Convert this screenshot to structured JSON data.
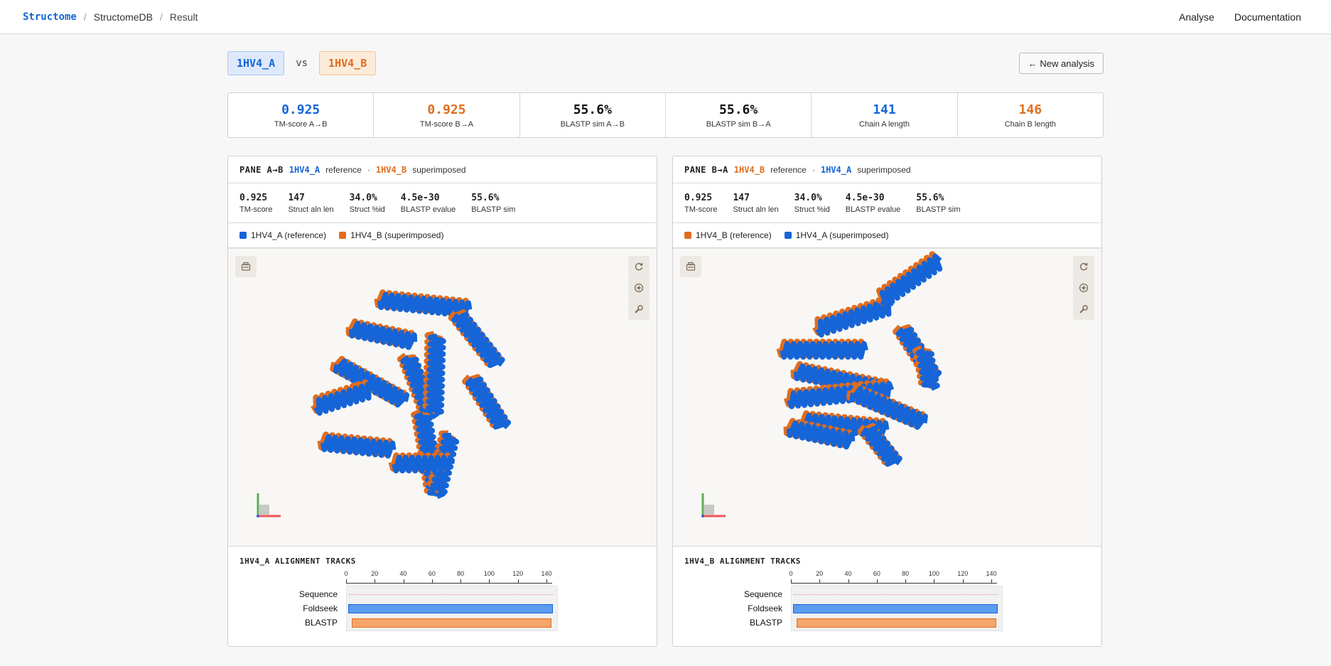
{
  "nav": {
    "brand": "Structome",
    "crumb_db": "StructomeDB",
    "crumb_result": "Result",
    "link_analyse": "Analyse",
    "link_docs": "Documentation"
  },
  "header": {
    "chain_a": "1HV4_A",
    "vs": "vs",
    "chain_b": "1HV4_B",
    "new_analysis": "← New analysis"
  },
  "summary": [
    {
      "value": "0.925",
      "label": "TM-score A→B"
    },
    {
      "value": "0.925",
      "label": "TM-score B→A"
    },
    {
      "value": "55.6%",
      "label": "BLASTP sim A→B"
    },
    {
      "value": "55.6%",
      "label": "BLASTP sim B→A"
    },
    {
      "value": "141",
      "label": "Chain A length"
    },
    {
      "value": "146",
      "label": "Chain B length"
    }
  ],
  "panes": [
    {
      "title": "PANE A→B",
      "reference_id": "1HV4_A",
      "reference_word": "reference",
      "dot": "·",
      "superimposed_id": "1HV4_B",
      "superimposed_word": "superimposed",
      "metrics": [
        {
          "value": "0.925",
          "label": "TM-score"
        },
        {
          "value": "147",
          "label": "Struct aln len"
        },
        {
          "value": "34.0%",
          "label": "Struct %id"
        },
        {
          "value": "4.5e-30",
          "label": "BLASTP evalue"
        },
        {
          "value": "55.6%",
          "label": "BLASTP sim"
        }
      ],
      "legend_ref": "1HV4_A (reference)",
      "legend_sup": "1HV4_B (superimposed)",
      "tracks_title": "1HV4_A ALIGNMENT TRACKS",
      "track_labels": [
        "Sequence",
        "Foldseek",
        "BLASTP"
      ],
      "ticks": [
        "0",
        "20",
        "40",
        "60",
        "80",
        "100",
        "120",
        "140"
      ]
    },
    {
      "title": "PANE B→A",
      "reference_id": "1HV4_B",
      "reference_word": "reference",
      "dot": "·",
      "superimposed_id": "1HV4_A",
      "superimposed_word": "superimposed",
      "metrics": [
        {
          "value": "0.925",
          "label": "TM-score"
        },
        {
          "value": "147",
          "label": "Struct aln len"
        },
        {
          "value": "34.0%",
          "label": "Struct %id"
        },
        {
          "value": "4.5e-30",
          "label": "BLASTP evalue"
        },
        {
          "value": "55.6%",
          "label": "BLASTP sim"
        }
      ],
      "legend_ref": "1HV4_B (reference)",
      "legend_sup": "1HV4_A (superimposed)",
      "tracks_title": "1HV4_B ALIGNMENT TRACKS",
      "track_labels": [
        "Sequence",
        "Foldseek",
        "BLASTP"
      ],
      "ticks": [
        "0",
        "20",
        "40",
        "60",
        "80",
        "100",
        "120",
        "140",
        "140"
      ]
    }
  ],
  "colors": {
    "chain_a": "#1565d8",
    "chain_b": "#e06d1f"
  },
  "icons": [
    "screenshot-icon",
    "reset-view-icon",
    "spin-icon",
    "settings-wrench-icon"
  ]
}
